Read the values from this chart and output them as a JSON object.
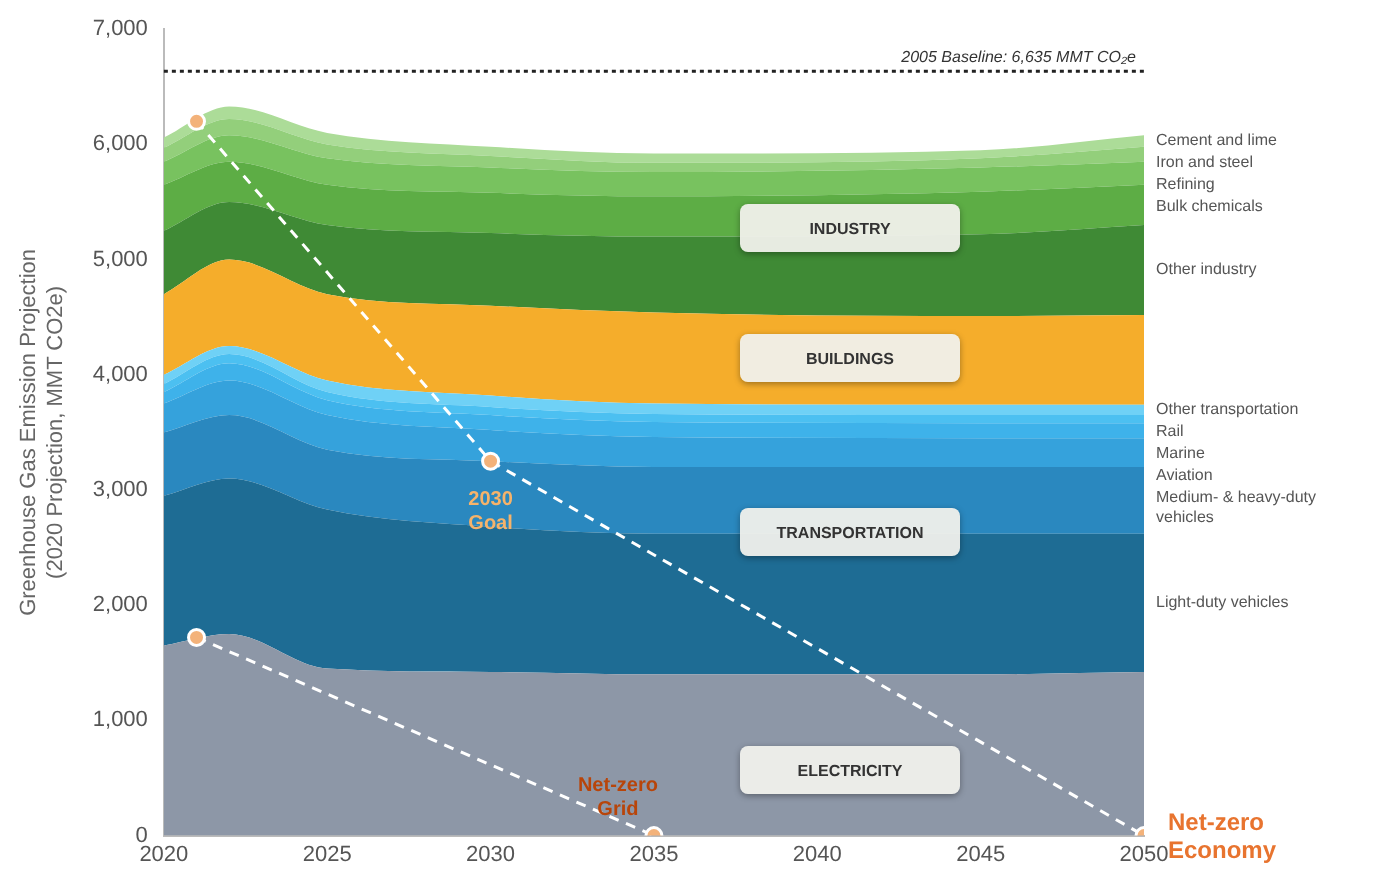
{
  "chart_data": {
    "type": "area",
    "stacked": true,
    "ylabel": "Greenhouse Gas Emission Projection\n(2020 Projection, MMT CO2e)",
    "x": [
      2020,
      2022,
      2025,
      2030,
      2035,
      2045,
      2050
    ],
    "xlim": [
      2020,
      2050
    ],
    "xticks": [
      2020,
      2025,
      2030,
      2035,
      2040,
      2045,
      2050
    ],
    "ylim": [
      0,
      7000
    ],
    "yticks": [
      0,
      {
        "value": 1000,
        "label": "1,000"
      },
      {
        "value": 2000,
        "label": "2,000"
      },
      {
        "value": 3000,
        "label": "3,000"
      },
      {
        "value": 4000,
        "label": "4,000"
      },
      {
        "value": 5000,
        "label": "5,000"
      },
      {
        "value": 6000,
        "label": "6,000"
      },
      {
        "value": 7000,
        "label": "7,000"
      }
    ],
    "grid": false,
    "series": [
      {
        "name": null,
        "color": "#8d97a7",
        "values": [
          1650,
          1750,
          1450,
          1420,
          1400,
          1400,
          1420
        ]
      },
      {
        "name": "Light-duty vehicles",
        "color": "#1e6c94",
        "values": [
          1300,
          1350,
          1380,
          1260,
          1220,
          1220,
          1200
        ]
      },
      {
        "name": "Medium- & heavy-duty vehicles",
        "color": "#2a88bf",
        "values": [
          550,
          550,
          520,
          570,
          580,
          580,
          580
        ]
      },
      {
        "name": "Aviation",
        "color": "#35a2dc",
        "values": [
          250,
          300,
          300,
          270,
          260,
          250,
          250
        ]
      },
      {
        "name": "Marine",
        "color": "#3eb2ea",
        "values": [
          100,
          150,
          130,
          130,
          130,
          130,
          130
        ]
      },
      {
        "name": "Rail",
        "color": "#4cc0f1",
        "values": [
          70,
          80,
          70,
          70,
          70,
          70,
          70
        ]
      },
      {
        "name": "Other transportation",
        "color": "#6fd1f6",
        "values": [
          80,
          70,
          100,
          100,
          90,
          90,
          90
        ]
      },
      {
        "name": null,
        "color": "#f5ad2b",
        "values": [
          700,
          750,
          750,
          780,
          790,
          770,
          780
        ]
      },
      {
        "name": "Other industry",
        "color": "#3f8a35",
        "values": [
          550,
          500,
          600,
          630,
          660,
          710,
          780
        ]
      },
      {
        "name": "Bulk chemicals",
        "color": "#5dad45",
        "values": [
          400,
          350,
          350,
          350,
          350,
          370,
          350
        ]
      },
      {
        "name": "Refining",
        "color": "#78c25f",
        "values": [
          200,
          230,
          230,
          220,
          210,
          210,
          200
        ]
      },
      {
        "name": "Iron and steel",
        "color": "#93cf7b",
        "values": [
          120,
          140,
          120,
          100,
          80,
          80,
          130
        ]
      },
      {
        "name": "Cement and lime",
        "color": "#acdc98",
        "values": [
          90,
          110,
          100,
          80,
          80,
          70,
          100
        ]
      },
      {
        "type": "line",
        "color": "#ffffff",
        "line_style": "dashed",
        "marker": "circle",
        "x": [
          2021,
          2030,
          2050
        ],
        "values": [
          6200,
          3250,
          0
        ]
      },
      {
        "type": "line",
        "color": "#ffffff",
        "line_style": "dashed",
        "marker": "circle",
        "x": [
          2021,
          2035
        ],
        "values": [
          1720,
          0
        ]
      }
    ],
    "ref_lines": [
      {
        "axis": "y",
        "value": 6635,
        "label": "2005 Baseline: 6,635 MMT CO₂e",
        "color": "#222222",
        "line_style": "dotted"
      }
    ],
    "annotations": [
      "INDUSTRY",
      "BUILDINGS",
      "TRANSPORTATION",
      "ELECTRICITY",
      {
        "text": "2030\nGoal",
        "x": 2030,
        "y": 3250
      },
      {
        "text": "Net-zero\nGrid",
        "x": 2035,
        "y": 0
      },
      {
        "text": "Net-zero\nEconomy",
        "x": 2050,
        "y": 0
      }
    ]
  }
}
